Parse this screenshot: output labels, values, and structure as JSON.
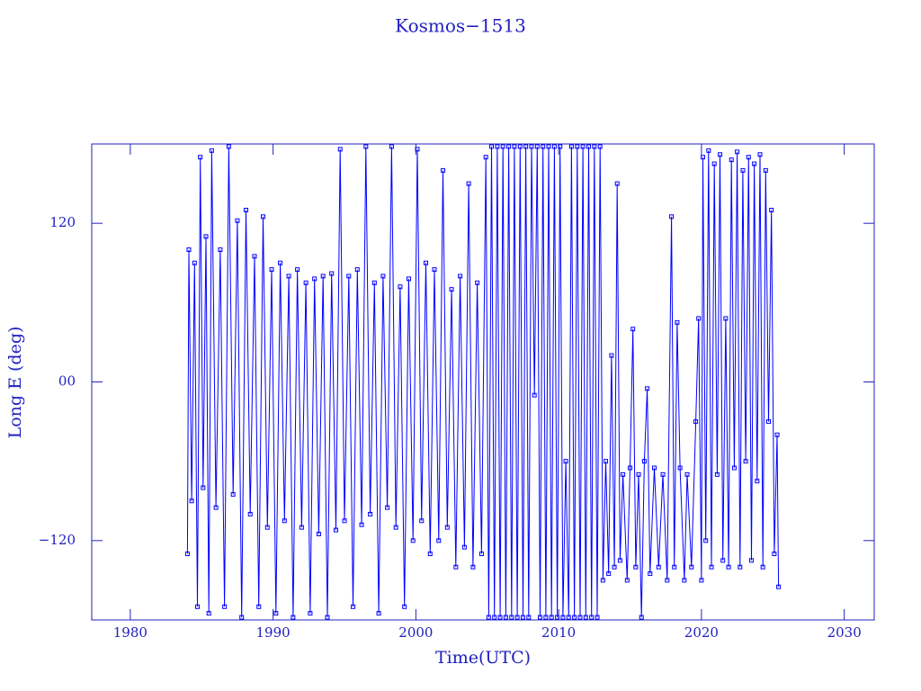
{
  "chart_data": {
    "type": "line",
    "title": "Kosmos−1513",
    "x_label": "Time(UTC)",
    "y_label": "Long E (deg)",
    "color": "#0000ff",
    "marker": "square",
    "xlim": [
      1977.3,
      2032.1
    ],
    "xticks": [
      1980,
      1990,
      2000,
      2010,
      2020,
      2030
    ],
    "ylim": [
      -180,
      180
    ],
    "yticks": [
      {
        "value": -120,
        "label": "−120"
      },
      {
        "value": 0,
        "label": "00"
      },
      120
    ],
    "x": [
      1984.0,
      1984.1,
      1984.3,
      1984.5,
      1984.7,
      1984.9,
      1985.1,
      1985.3,
      1985.5,
      1985.7,
      1986.0,
      1986.3,
      1986.6,
      1986.9,
      1987.2,
      1987.5,
      1987.8,
      1988.1,
      1988.4,
      1988.7,
      1989.0,
      1989.3,
      1989.6,
      1989.9,
      1990.2,
      1990.5,
      1990.8,
      1991.1,
      1991.4,
      1991.7,
      1992.0,
      1992.3,
      1992.6,
      1992.9,
      1993.2,
      1993.5,
      1993.8,
      1994.1,
      1994.4,
      1994.7,
      1995.0,
      1995.3,
      1995.6,
      1995.9,
      1996.2,
      1996.5,
      1996.8,
      1997.1,
      1997.4,
      1997.7,
      1998.0,
      1998.3,
      1998.6,
      1998.9,
      1999.2,
      1999.5,
      1999.8,
      2000.1,
      2000.4,
      2000.7,
      2001.0,
      2001.3,
      2001.6,
      2001.9,
      2002.2,
      2002.5,
      2002.8,
      2003.1,
      2003.4,
      2003.7,
      2004.0,
      2004.3,
      2004.6,
      2004.9,
      2005.1,
      2005.3,
      2005.5,
      2005.7,
      2005.9,
      2006.1,
      2006.3,
      2006.5,
      2006.7,
      2006.9,
      2007.1,
      2007.3,
      2007.5,
      2007.7,
      2007.9,
      2008.1,
      2008.3,
      2008.5,
      2008.7,
      2008.9,
      2009.1,
      2009.3,
      2009.5,
      2009.7,
      2009.9,
      2010.1,
      2010.3,
      2010.5,
      2010.7,
      2010.9,
      2011.1,
      2011.3,
      2011.5,
      2011.7,
      2011.9,
      2012.1,
      2012.3,
      2012.5,
      2012.7,
      2012.9,
      2013.1,
      2013.3,
      2013.5,
      2013.7,
      2013.9,
      2014.1,
      2014.3,
      2014.5,
      2014.8,
      2015.0,
      2015.2,
      2015.4,
      2015.6,
      2015.8,
      2016.0,
      2016.2,
      2016.4,
      2016.7,
      2017.0,
      2017.3,
      2017.6,
      2017.9,
      2018.1,
      2018.3,
      2018.5,
      2018.8,
      2019.0,
      2019.3,
      2019.6,
      2019.8,
      2020.0,
      2020.1,
      2020.3,
      2020.5,
      2020.7,
      2020.9,
      2021.1,
      2021.3,
      2021.5,
      2021.7,
      2021.9,
      2022.1,
      2022.3,
      2022.5,
      2022.7,
      2022.9,
      2023.1,
      2023.3,
      2023.5,
      2023.7,
      2023.9,
      2024.1,
      2024.3,
      2024.5,
      2024.7,
      2024.9,
      2025.1,
      2025.3,
      2025.4
    ],
    "values": [
      -130,
      100,
      -90,
      90,
      -170,
      170,
      -80,
      110,
      -175,
      175,
      -95,
      100,
      -170,
      178,
      -85,
      122,
      -178,
      130,
      -100,
      95,
      -170,
      125,
      -110,
      85,
      -175,
      90,
      -105,
      80,
      -178,
      85,
      -110,
      75,
      -175,
      78,
      -115,
      80,
      -178,
      82,
      -112,
      176,
      -105,
      80,
      -170,
      85,
      -108,
      178,
      -100,
      75,
      -175,
      80,
      -95,
      178,
      -110,
      72,
      -170,
      78,
      -120,
      176,
      -105,
      90,
      -130,
      85,
      -120,
      160,
      -110,
      70,
      -140,
      80,
      -125,
      150,
      -140,
      75,
      -130,
      170,
      -178,
      178,
      -178,
      178,
      -178,
      178,
      -178,
      178,
      -178,
      178,
      -178,
      178,
      -178,
      178,
      -178,
      178,
      -10,
      178,
      -178,
      178,
      -178,
      178,
      -178,
      178,
      -178,
      178,
      -178,
      -60,
      -178,
      178,
      -178,
      178,
      -178,
      178,
      -178,
      178,
      -178,
      178,
      -178,
      178,
      -150,
      -60,
      -145,
      20,
      -140,
      150,
      -135,
      -70,
      -150,
      -65,
      40,
      -140,
      -70,
      -178,
      -60,
      -5,
      -145,
      -65,
      -140,
      -70,
      -150,
      125,
      -140,
      45,
      -65,
      -150,
      -70,
      -140,
      -30,
      48,
      -150,
      170,
      -120,
      175,
      -140,
      165,
      -70,
      172,
      -135,
      48,
      -140,
      168,
      -65,
      174,
      -140,
      160,
      -60,
      170,
      -135,
      165,
      -75,
      172,
      -140,
      160,
      -30,
      130,
      -130,
      -40,
      -155
    ]
  }
}
